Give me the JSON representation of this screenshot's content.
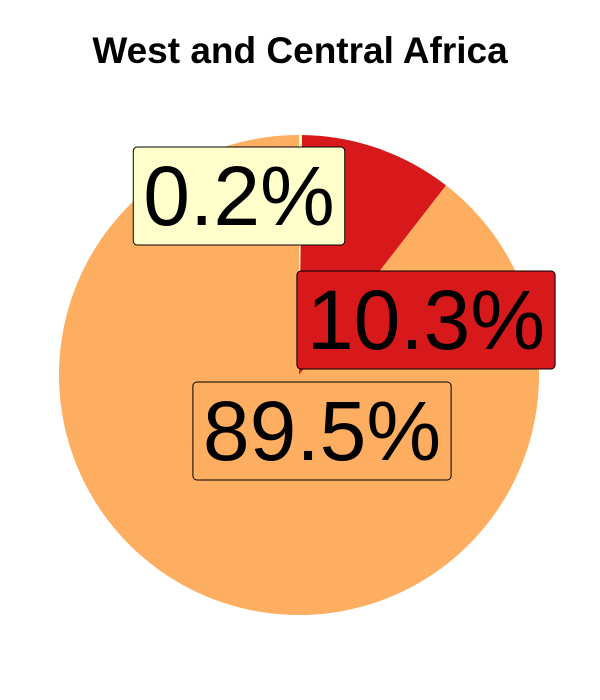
{
  "chart_data": {
    "type": "pie",
    "title": "West and Central Africa",
    "slices": [
      {
        "label": "0.2%",
        "value": 0.2,
        "color": "#ffffcc"
      },
      {
        "label": "10.3%",
        "value": 10.3,
        "color": "#d7191c"
      },
      {
        "label": "89.5%",
        "value": 89.5,
        "color": "#fdae61"
      }
    ],
    "legend": "none"
  }
}
